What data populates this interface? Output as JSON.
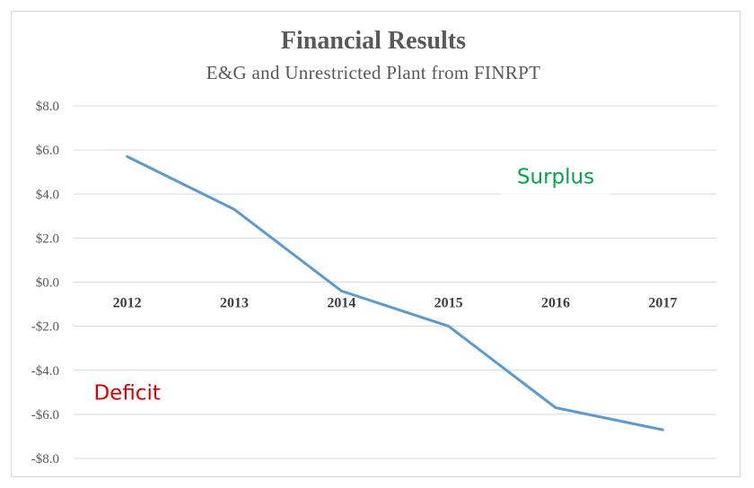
{
  "chart_data": {
    "type": "line",
    "title": "Financial Results",
    "subtitle": "E&G and Unrestricted Plant from FINRPT",
    "categories": [
      "2012",
      "2013",
      "2014",
      "2015",
      "2016",
      "2017"
    ],
    "series": [
      {
        "values": [
          5.7,
          3.3,
          -0.4,
          -2.0,
          -5.7,
          -6.7
        ],
        "color": "#5b9bd5"
      }
    ],
    "ylim": [
      -8,
      8
    ],
    "yticks": [
      8,
      6,
      4,
      2,
      0,
      -2,
      -4,
      -6,
      -8
    ],
    "ytick_labels": [
      "$8.0",
      "$6.0",
      "$4.0",
      "$2.0",
      "$0.0",
      "-$2.0",
      "-$4.0",
      "-$6.0",
      "-$8.0"
    ],
    "xlabel": "",
    "ylabel": "",
    "grid": true,
    "legend": "none",
    "annotations": [
      {
        "text": "Surplus",
        "color": "#00a651",
        "x": "2016",
        "y": 4.8
      },
      {
        "text": "Deficit",
        "color": "#e00000",
        "x": "2012",
        "y": -5.0
      }
    ],
    "gridline_color": "#d9d9d9"
  }
}
